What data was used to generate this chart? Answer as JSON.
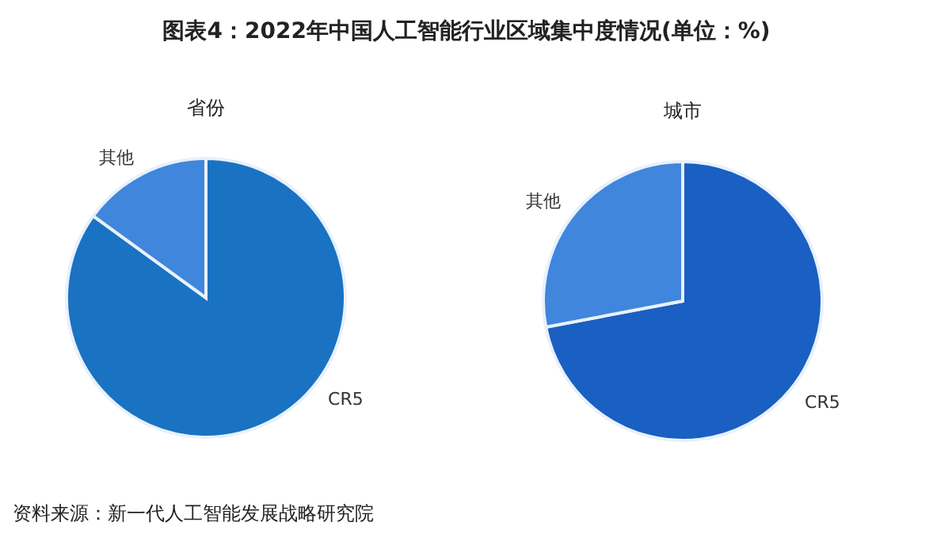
{
  "chart_data": [
    {
      "type": "pie",
      "title": "图表4：2022年中国人工智能行业区域集中度情况(单位：%)",
      "subtitle": "省份",
      "categories": [
        "CR5",
        "其他"
      ],
      "values": [
        85,
        15
      ],
      "colors": [
        "#1a72c2",
        "#3f86dc"
      ],
      "annotations": [
        "资料来源：新一代人工智能发展战略研究院"
      ]
    },
    {
      "type": "pie",
      "subtitle": "城市",
      "categories": [
        "CR5",
        "其他"
      ],
      "values": [
        72,
        28
      ],
      "colors": [
        "#1a5fc2",
        "#3f86dc"
      ]
    }
  ]
}
